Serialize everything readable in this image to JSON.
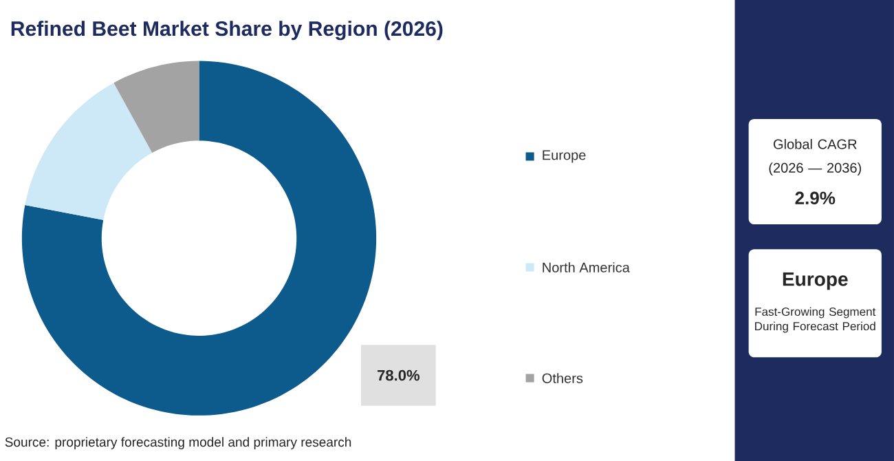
{
  "chart_data": [
    {
      "type": "donut",
      "title": "Refined Beet Market Share by Region (2026)",
      "categories": [
        "Europe",
        "North America",
        "Others"
      ],
      "values": [
        78.0,
        14.0,
        8.0
      ],
      "colors": [
        "#0d5a8c",
        "#cde8f6",
        "#a3a3a3"
      ],
      "value_labels": [
        "78.0%",
        null,
        null
      ],
      "legend": "right",
      "annotations": [
        "Source: proprietary forecasting model and primary research"
      ]
    },
    {
      "type": "other",
      "annotations": [
        "Global CAGR",
        "(2026 — 2036)",
        "2.9%",
        "Europe",
        "Fast-Growing Segment During Forecast Period"
      ]
    }
  ]
}
